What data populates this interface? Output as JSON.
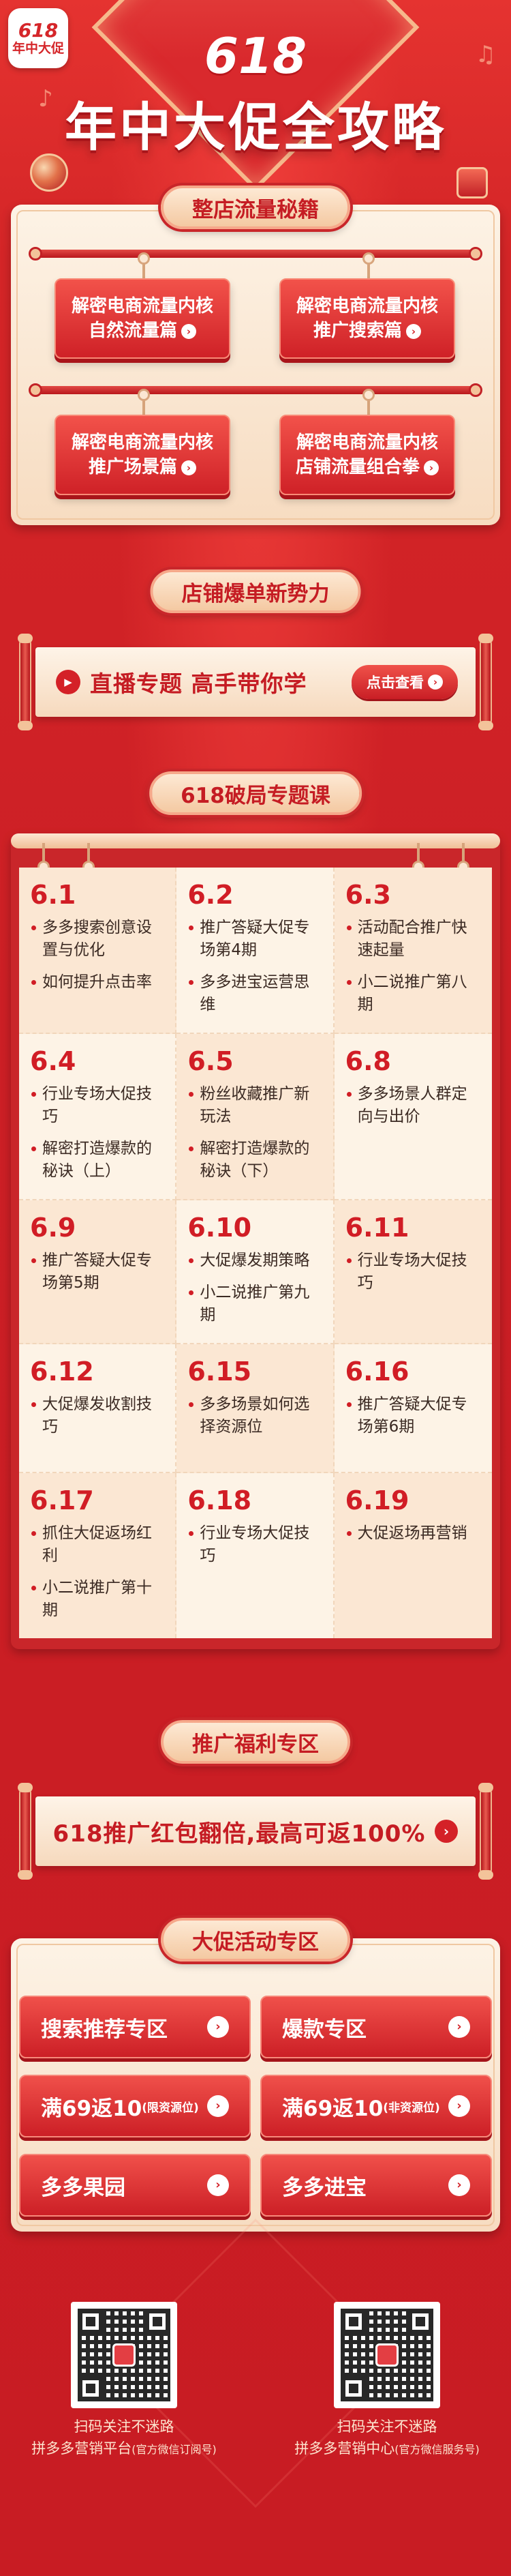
{
  "hero": {
    "logo_top": "618",
    "logo_bottom": "年中大促",
    "number": "618",
    "title": "年中大促全攻略"
  },
  "sections": {
    "traffic": {
      "tab": "整店流量秘籍",
      "buttons": [
        {
          "line1": "解密电商流量内核",
          "line2": "自然流量篇"
        },
        {
          "line1": "解密电商流量内核",
          "line2": "推广搜索篇"
        },
        {
          "line1": "解密电商流量内核",
          "line2": "推广场景篇"
        },
        {
          "line1": "解密电商流量内核",
          "line2": "店铺流量组合拳"
        }
      ]
    },
    "live": {
      "tab": "店铺爆单新势力",
      "text": "直播专题  高手带你学",
      "button": "点击查看"
    },
    "courses": {
      "tab": "618破局专题课",
      "cells": [
        {
          "date": "6.1",
          "items": [
            "多多搜索创意设置与优化",
            "如何提升点击率"
          ]
        },
        {
          "date": "6.2",
          "items": [
            "推广答疑大促专场第4期",
            "多多进宝运营思维"
          ]
        },
        {
          "date": "6.3",
          "items": [
            "活动配合推广快速起量",
            "小二说推广第八期"
          ]
        },
        {
          "date": "6.4",
          "items": [
            "行业专场大促技巧",
            "解密打造爆款的秘诀（上）"
          ]
        },
        {
          "date": "6.5",
          "items": [
            "粉丝收藏推广新玩法",
            "解密打造爆款的秘诀（下）"
          ]
        },
        {
          "date": "6.8",
          "items": [
            "多多场景人群定向与出价"
          ]
        },
        {
          "date": "6.9",
          "items": [
            "推广答疑大促专场第5期"
          ]
        },
        {
          "date": "6.10",
          "items": [
            "大促爆发期策略",
            "小二说推广第九期"
          ]
        },
        {
          "date": "6.11",
          "items": [
            "行业专场大促技巧"
          ]
        },
        {
          "date": "6.12",
          "items": [
            "大促爆发收割技巧"
          ]
        },
        {
          "date": "6.15",
          "items": [
            "多多场景如何选择资源位"
          ]
        },
        {
          "date": "6.16",
          "items": [
            "推广答疑大促专场第6期"
          ]
        },
        {
          "date": "6.17",
          "items": [
            "抓住大促返场红利",
            "小二说推广第十期"
          ]
        },
        {
          "date": "6.18",
          "items": [
            "行业专场大促技巧"
          ]
        },
        {
          "date": "6.19",
          "items": [
            "大促返场再营销"
          ]
        }
      ]
    },
    "benefit": {
      "tab": "推广福利专区",
      "text": "618推广红包翻倍,最高可返100%"
    },
    "promo": {
      "tab": "大促活动专区",
      "buttons": [
        {
          "label": "搜索推荐专区",
          "note": ""
        },
        {
          "label": "爆款专区",
          "note": ""
        },
        {
          "label": "满69返10",
          "note": "(限资源位)"
        },
        {
          "label": "满69返10",
          "note": "(非资源位)"
        },
        {
          "label": "多多果园",
          "note": ""
        },
        {
          "label": "多多进宝",
          "note": ""
        }
      ]
    }
  },
  "footer": {
    "left": {
      "line1": "扫码关注不迷路",
      "line2": "拼多多营销平台",
      "note": "(官方微信订阅号)"
    },
    "right": {
      "line1": "扫码关注不迷路",
      "line2": "拼多多营销中心",
      "note": "(官方微信服务号)"
    }
  },
  "colors": {
    "background": "#c81e24",
    "accent_red": "#d11d25",
    "cream": "#fdf3e6",
    "gold": "#f3c39a"
  },
  "icons": {
    "arrow": "chevron-right-circle-icon",
    "play": "play-circle-icon",
    "note": "music-note-icon"
  }
}
